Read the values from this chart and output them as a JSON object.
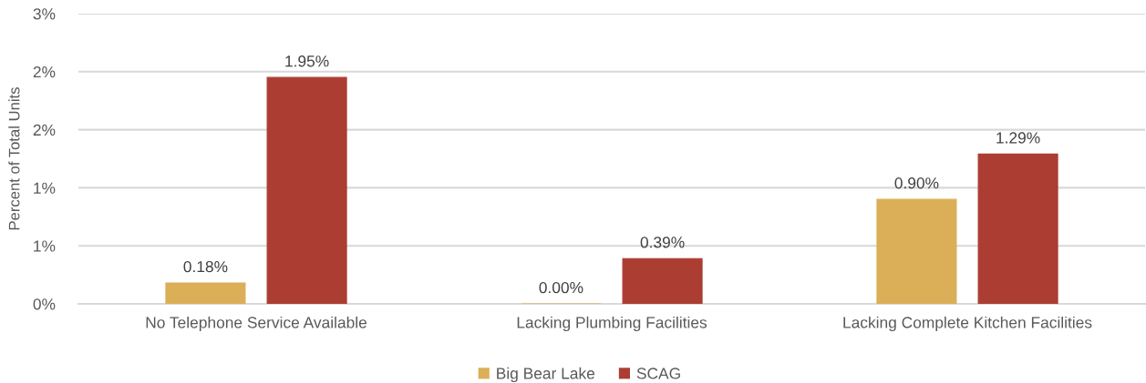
{
  "chart_data": {
    "type": "bar",
    "ylabel": "Percent of Total Units",
    "categories": [
      "No Telephone Service Available",
      "Lacking Plumbing Facilities",
      "Lacking Complete Kitchen Facilities"
    ],
    "series": [
      {
        "name": "Big Bear Lake",
        "color": "#dbae58",
        "values": [
          0.18,
          0.0,
          0.9
        ],
        "value_labels": [
          "0.18%",
          "0.00%",
          "0.90%"
        ]
      },
      {
        "name": "SCAG",
        "color": "#ab3d32",
        "values": [
          1.95,
          0.39,
          1.29
        ],
        "value_labels": [
          "1.95%",
          "0.39%",
          "1.29%"
        ]
      }
    ],
    "ylim": [
      0,
      2.5
    ],
    "yticks": [
      {
        "value": 0,
        "label": "0%"
      },
      {
        "value": 0.5,
        "label": "1%"
      },
      {
        "value": 1,
        "label": "1%"
      },
      {
        "value": 1.5,
        "label": "2%"
      },
      {
        "value": 2,
        "label": "2%"
      },
      {
        "value": 2.5,
        "label": "3%"
      }
    ],
    "grid": "y",
    "legend": "bottom"
  }
}
